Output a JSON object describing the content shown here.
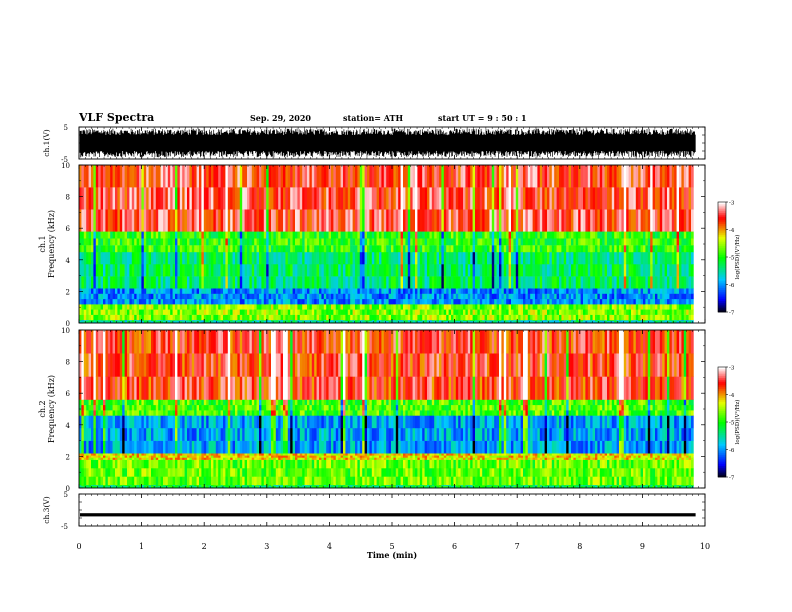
{
  "header": {
    "title": "VLF Spectra",
    "date": "Sep. 29, 2020",
    "station": "station= ATH",
    "start": "start  UT =   9 : 50 : 1"
  },
  "chart_data": [
    {
      "type": "line",
      "name": "ch1-waveform",
      "ylabel": "ch.1(V)",
      "ylim": [
        -5,
        5
      ],
      "yticks": [
        "5",
        "-5"
      ],
      "xlim": [
        0,
        10
      ],
      "description_values": {
        "amplitude_range_V": [
          -4.5,
          4.5
        ],
        "data_end_min": 9.85
      }
    },
    {
      "type": "heatmap",
      "name": "ch1-spectrogram",
      "ylabel": "ch.1\nFrequency (kHz)",
      "ylabel_lines": [
        "ch.1",
        "Frequency (kHz)"
      ],
      "ylim": [
        0,
        10
      ],
      "yticks": [
        "0",
        "2",
        "4",
        "6",
        "8",
        "10"
      ],
      "xlim": [
        0,
        10
      ],
      "data_end_min": 9.85,
      "bands_kHz": [
        {
          "f0": 0.0,
          "f1": 0.2,
          "log_psd": -5.5
        },
        {
          "f0": 0.2,
          "f1": 1.2,
          "log_psd": -4.6
        },
        {
          "f0": 1.2,
          "f1": 2.2,
          "log_psd": -6.0
        },
        {
          "f0": 2.2,
          "f1": 4.5,
          "log_psd": -5.3
        },
        {
          "f0": 4.5,
          "f1": 5.8,
          "log_psd": -4.9
        },
        {
          "f0": 5.8,
          "f1": 10.0,
          "log_psd": -3.5
        }
      ],
      "colorbar": {
        "label": "log(PSD)(V²/Hz)",
        "range": [
          -7,
          -3
        ],
        "ticks": [
          "-3",
          "-4",
          "-5",
          "-6",
          "-7"
        ]
      }
    },
    {
      "type": "heatmap",
      "name": "ch2-spectrogram",
      "ylabel": "ch.2\nFrequency (kHz)",
      "ylabel_lines": [
        "ch.2",
        "Frequency (kHz)"
      ],
      "ylim": [
        0,
        10
      ],
      "yticks": [
        "0",
        "2",
        "4",
        "6",
        "8",
        "10"
      ],
      "xlim": [
        0,
        10
      ],
      "data_end_min": 9.85,
      "bands_kHz": [
        {
          "f0": 0.0,
          "f1": 0.2,
          "log_psd": -5.2
        },
        {
          "f0": 0.2,
          "f1": 1.8,
          "log_psd": -4.7
        },
        {
          "f0": 1.8,
          "f1": 2.2,
          "log_psd": -4.2
        },
        {
          "f0": 2.2,
          "f1": 4.6,
          "log_psd": -5.9
        },
        {
          "f0": 4.6,
          "f1": 5.6,
          "log_psd": -4.8
        },
        {
          "f0": 5.6,
          "f1": 10.0,
          "log_psd": -3.6
        }
      ],
      "colorbar": {
        "label": "log(PSD)(V²/Hz)",
        "range": [
          -7,
          -3
        ],
        "ticks": [
          "-3",
          "-4",
          "-5",
          "-6",
          "-7"
        ]
      }
    },
    {
      "type": "line",
      "name": "ch3-waveform",
      "ylabel": "ch.3(V)",
      "ylim": [
        -5,
        5
      ],
      "yticks": [
        "5",
        "-5"
      ],
      "xlim": [
        0,
        10
      ],
      "description_values": {
        "baseline_V": -1.5,
        "amplitude_V": 0.25,
        "data_end_min": 9.85
      }
    }
  ],
  "xaxis": {
    "label": "Time (min)",
    "ticks": [
      "0",
      "1",
      "2",
      "3",
      "4",
      "5",
      "6",
      "7",
      "8",
      "9",
      "10"
    ]
  },
  "colors": {
    "axis": "#000000",
    "colormap": [
      "#000000",
      "#0000ff",
      "#00ffff",
      "#00ff00",
      "#ffff00",
      "#ff0000",
      "#ffffff"
    ]
  }
}
